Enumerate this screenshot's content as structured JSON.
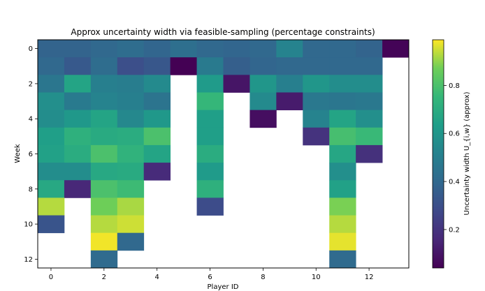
{
  "chart_data": {
    "type": "heatmap",
    "title": "Approx uncertainty width via feasible-sampling (percentage constraints)",
    "xlabel": "Player ID",
    "ylabel": "Week",
    "colorbar_label": "Uncertainty width U_{i,w} (approx)",
    "colormap": "viridis",
    "vmin": 0.04,
    "vmax": 0.99,
    "x_range": [
      -0.5,
      13.5
    ],
    "y_range": [
      -0.5,
      12.5
    ],
    "y_inverted": true,
    "x_ticks": [
      0,
      2,
      4,
      6,
      8,
      10,
      12
    ],
    "y_ticks": [
      0,
      2,
      4,
      6,
      8,
      10,
      12
    ],
    "colorbar_ticks": [
      0.2,
      0.4,
      0.6,
      0.8
    ],
    "players": [
      0,
      1,
      2,
      3,
      4,
      5,
      6,
      7,
      8,
      9,
      10,
      11,
      12,
      13
    ],
    "weeks": [
      0,
      1,
      2,
      3,
      4,
      5,
      6,
      7,
      8,
      9,
      10,
      11,
      12
    ],
    "values": [
      [
        0.38,
        0.38,
        0.4,
        0.42,
        0.39,
        0.43,
        0.4,
        0.39,
        0.4,
        0.52,
        0.4,
        0.4,
        0.38,
        0.05
      ],
      [
        0.4,
        0.34,
        0.42,
        0.3,
        0.33,
        0.03,
        0.48,
        0.36,
        0.39,
        0.4,
        0.4,
        0.4,
        0.4,
        null
      ],
      [
        0.46,
        0.66,
        0.5,
        0.49,
        0.55,
        null,
        0.62,
        0.1,
        0.6,
        0.5,
        0.6,
        0.56,
        0.56,
        null
      ],
      [
        0.57,
        0.48,
        0.52,
        0.5,
        0.45,
        null,
        0.75,
        null,
        0.55,
        0.12,
        0.47,
        0.46,
        0.47,
        null
      ],
      [
        0.56,
        0.61,
        0.66,
        0.54,
        0.61,
        null,
        0.64,
        null,
        0.08,
        null,
        0.52,
        0.66,
        0.57,
        null
      ],
      [
        0.64,
        0.72,
        0.69,
        0.7,
        0.8,
        null,
        0.64,
        null,
        null,
        null,
        0.2,
        0.79,
        0.76,
        null
      ],
      [
        0.65,
        0.7,
        0.8,
        0.73,
        0.66,
        null,
        0.7,
        null,
        null,
        null,
        null,
        0.67,
        0.19,
        null
      ],
      [
        0.56,
        0.56,
        0.68,
        0.69,
        0.17,
        null,
        0.62,
        null,
        null,
        null,
        null,
        0.57,
        null,
        null
      ],
      [
        0.68,
        0.16,
        0.8,
        0.77,
        null,
        null,
        0.72,
        null,
        null,
        null,
        null,
        0.65,
        null,
        null
      ],
      [
        0.93,
        null,
        0.87,
        0.92,
        null,
        null,
        0.29,
        null,
        null,
        null,
        null,
        0.88,
        null,
        null
      ],
      [
        0.32,
        null,
        0.93,
        0.95,
        null,
        null,
        null,
        null,
        null,
        null,
        null,
        0.93,
        null,
        null
      ],
      [
        null,
        null,
        0.98,
        0.4,
        null,
        null,
        null,
        null,
        null,
        null,
        null,
        0.97,
        null,
        null
      ],
      [
        null,
        null,
        0.41,
        null,
        null,
        null,
        null,
        null,
        null,
        null,
        null,
        0.41,
        null,
        null
      ]
    ]
  }
}
